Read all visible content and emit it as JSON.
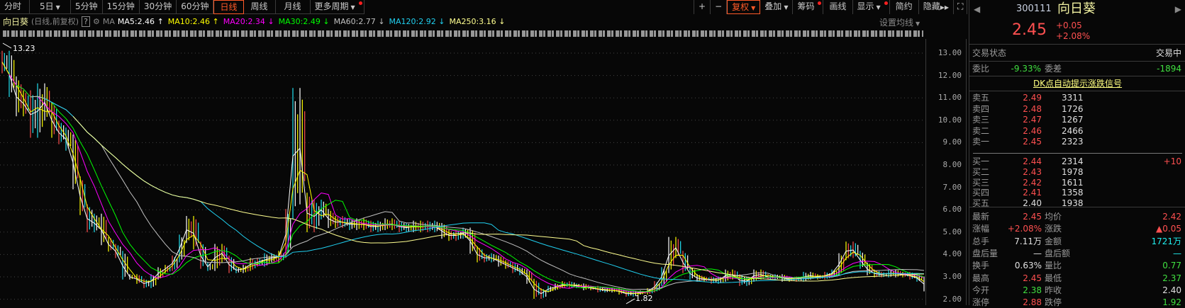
{
  "toolbar": {
    "periods": [
      "分时",
      "5日",
      "5分钟",
      "15分钟",
      "30分钟",
      "60分钟",
      "日线",
      "周线",
      "月线",
      "更多周期"
    ],
    "active": "日线",
    "tools": [
      {
        "label": "+"
      },
      {
        "label": "−"
      },
      {
        "label": "复权"
      },
      {
        "label": "叠加"
      },
      {
        "label": "筹码"
      },
      {
        "label": "画线"
      },
      {
        "label": "显示"
      },
      {
        "label": "简约"
      },
      {
        "label": "隐藏"
      }
    ]
  },
  "chart_header": {
    "name": "向日葵",
    "mode": "(日线,前复权)",
    "help": "?",
    "ma_label": "MA",
    "set_ma": "设置均线",
    "mas": [
      {
        "text": "MA5:2.46",
        "arrow": "↑",
        "color": "#ffffff"
      },
      {
        "text": "MA10:2.46",
        "arrow": "↑",
        "color": "#ffff00"
      },
      {
        "text": "MA20:2.34",
        "arrow": "↓",
        "color": "#ff00ff"
      },
      {
        "text": "MA30:2.49",
        "arrow": "↓",
        "color": "#00ff00"
      },
      {
        "text": "MA60:2.77",
        "arrow": "↓",
        "color": "#c0c0c0"
      },
      {
        "text": "MA120:2.92",
        "arrow": "↓",
        "color": "#20d0f0"
      },
      {
        "text": "MA250:3.16",
        "arrow": "↓",
        "color": "#ffff90"
      }
    ]
  },
  "chart_data": {
    "type": "candlestick",
    "ylim": [
      2,
      13
    ],
    "yticks": [
      "13.00",
      "12.00",
      "11.00",
      "10.00",
      "9.00",
      "8.00",
      "7.00",
      "6.00",
      "5.00",
      "4.00",
      "3.00",
      "2.00"
    ],
    "max_label": "13.23",
    "min_label": "1.82",
    "grid": true,
    "closes": [
      12.6,
      11.5,
      10.6,
      10.9,
      9.6,
      11.2,
      10.4,
      9.6,
      9.3,
      9.0,
      7.2,
      6.0,
      5.2,
      5.6,
      4.6,
      4.3,
      4.0,
      3.0,
      3.0,
      2.8,
      2.6,
      3.0,
      3.3,
      3.4,
      3.8,
      4.7,
      5.5,
      4.4,
      3.5,
      3.4,
      4.3,
      3.8,
      3.3,
      3.3,
      3.4,
      3.7,
      3.6,
      3.9,
      3.8,
      4.0,
      5.8,
      11.0,
      6.5,
      5.2,
      6.2,
      5.8,
      5.4,
      5.5,
      5.4,
      5.3,
      5.4,
      5.3,
      5.2,
      5.3,
      5.4,
      5.3,
      5.2,
      5.2,
      5.3,
      5.2,
      5.3,
      5.2,
      4.9,
      4.8,
      4.9,
      5.0,
      4.2,
      3.8,
      3.9,
      3.8,
      3.6,
      3.5,
      3.3,
      3.2,
      2.8,
      2.1,
      2.4,
      2.5,
      2.6,
      2.7,
      2.6,
      2.6,
      2.5,
      2.5,
      2.4,
      2.4,
      2.4,
      2.3,
      2.2,
      2.3,
      2.3,
      2.4,
      2.7,
      3.3,
      4.6,
      4.0,
      3.3,
      3.0,
      2.9,
      2.9,
      2.8,
      2.9,
      3.2,
      3.0,
      2.7,
      2.9,
      3.2,
      3.0,
      3.0,
      3.0,
      2.9,
      2.9,
      2.9,
      3.1,
      3.0,
      3.0,
      3.1,
      3.2,
      3.9,
      4.4,
      4.0,
      3.5,
      3.2,
      3.1,
      3.1,
      3.2,
      3.1,
      3.1,
      3.0,
      2.9,
      2.45
    ],
    "ma_series": [
      "MA5",
      "MA10",
      "MA20",
      "MA30",
      "MA60",
      "MA120",
      "MA250"
    ]
  },
  "quote": {
    "code": "300111",
    "name": "向日葵",
    "price": "2.45",
    "change": "+0.05",
    "pct": "+2.08%",
    "status_label": "交易状态",
    "status": "交易中",
    "wb_label": "委比",
    "wb": "-9.33%",
    "wc_label": "委差",
    "wc": "-1894",
    "link": "DK点自动提示涨跌信号",
    "asks": [
      {
        "l": "卖五",
        "p": "2.49",
        "v": "3311"
      },
      {
        "l": "卖四",
        "p": "2.48",
        "v": "1726"
      },
      {
        "l": "卖三",
        "p": "2.47",
        "v": "1267"
      },
      {
        "l": "卖二",
        "p": "2.46",
        "v": "2466"
      },
      {
        "l": "卖一",
        "p": "2.45",
        "v": "2323"
      }
    ],
    "bids": [
      {
        "l": "买一",
        "p": "2.44",
        "v": "2314",
        "d": "+10"
      },
      {
        "l": "买二",
        "p": "2.43",
        "v": "1978",
        "d": ""
      },
      {
        "l": "买三",
        "p": "2.42",
        "v": "1611",
        "d": ""
      },
      {
        "l": "买四",
        "p": "2.41",
        "v": "1358",
        "d": ""
      },
      {
        "l": "买五",
        "p": "2.40",
        "v": "1938",
        "d": ""
      }
    ],
    "stats": [
      {
        "l1": "最新",
        "v1": "2.45",
        "c1": "red",
        "l2": "均价",
        "v2": "2.42",
        "c2": "red"
      },
      {
        "l1": "涨幅",
        "v1": "+2.08%",
        "c1": "red",
        "l2": "涨跌",
        "v2": "▲0.05",
        "c2": "red"
      },
      {
        "l1": "总手",
        "v1": "7.11万",
        "c1": "white",
        "l2": "金额",
        "v2": "1721万",
        "c2": "cyan"
      },
      {
        "l1": "盘后量",
        "v1": "—",
        "c1": "white",
        "l2": "盘后额",
        "v2": "—",
        "c2": "cyan"
      },
      {
        "l1": "换手",
        "v1": "0.63%",
        "c1": "white",
        "l2": "量比",
        "v2": "0.77",
        "c2": "green"
      },
      {
        "l1": "最高",
        "v1": "2.45",
        "c1": "red",
        "l2": "最低",
        "v2": "2.37",
        "c2": "green"
      },
      {
        "l1": "今开",
        "v1": "2.38",
        "c1": "green",
        "l2": "昨收",
        "v2": "2.40",
        "c2": "white"
      },
      {
        "l1": "涨停",
        "v1": "2.88",
        "c1": "red",
        "l2": "跌停",
        "v2": "1.92",
        "c2": "green"
      }
    ]
  }
}
